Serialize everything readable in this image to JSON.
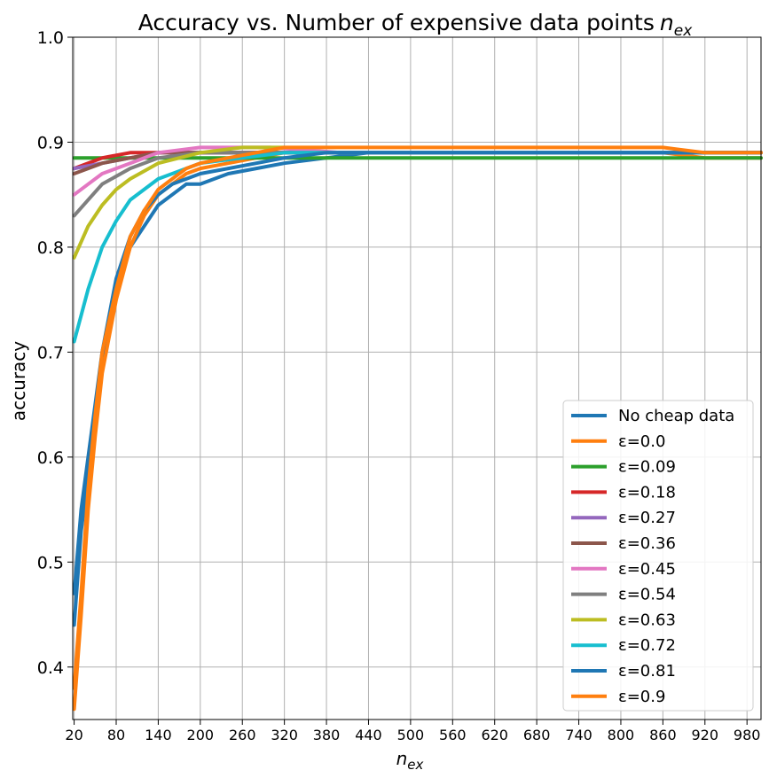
{
  "chart_data": {
    "type": "line",
    "title": "Accuracy vs. Number of expensive data points",
    "title_math": "n",
    "title_math_sub": "ex",
    "xlabel_math": "n",
    "xlabel_math_sub": "ex",
    "ylabel": "accuracy",
    "xlim": [
      18,
      1000
    ],
    "ylim": [
      0.35,
      1.0
    ],
    "xticks": [
      "20",
      "80",
      "140",
      "200",
      "260",
      "320",
      "380",
      "440",
      "500",
      "560",
      "620",
      "680",
      "740",
      "800",
      "860",
      "920",
      "980"
    ],
    "yticks": [
      "0.4",
      "0.5",
      "0.6",
      "0.7",
      "0.8",
      "0.9",
      "1.0"
    ],
    "grid": true,
    "legend_position": "lower-right",
    "series": [
      {
        "name": "No cheap data",
        "color": "#1f77b4",
        "x": [
          20,
          30,
          40,
          50,
          60,
          80,
          100,
          120,
          140,
          160,
          180,
          200,
          240,
          280,
          320,
          380,
          440,
          500,
          560,
          620,
          680,
          740,
          800,
          860,
          920,
          980,
          1000
        ],
        "y": [
          0.44,
          0.53,
          0.58,
          0.63,
          0.69,
          0.76,
          0.8,
          0.82,
          0.84,
          0.85,
          0.86,
          0.86,
          0.87,
          0.875,
          0.88,
          0.885,
          0.89,
          0.89,
          0.89,
          0.89,
          0.89,
          0.89,
          0.89,
          0.89,
          0.89,
          0.89,
          0.89
        ]
      },
      {
        "name": "ε=0.0",
        "color": "#ff7f0e",
        "x": [
          20,
          30,
          40,
          50,
          60,
          80,
          100,
          120,
          140,
          160,
          180,
          200,
          240,
          280,
          320,
          380,
          440,
          500,
          560,
          620,
          680,
          740,
          800,
          860,
          920,
          980,
          1000
        ],
        "y": [
          0.36,
          0.45,
          0.55,
          0.62,
          0.68,
          0.75,
          0.8,
          0.83,
          0.85,
          0.86,
          0.87,
          0.875,
          0.88,
          0.885,
          0.89,
          0.89,
          0.89,
          0.89,
          0.89,
          0.89,
          0.89,
          0.89,
          0.89,
          0.89,
          0.885,
          0.885,
          0.885
        ]
      },
      {
        "name": "ε=0.09",
        "color": "#2ca02c",
        "x": [
          20,
          60,
          100,
          140,
          200,
          300,
          400,
          500,
          600,
          700,
          800,
          900,
          1000
        ],
        "y": [
          0.885,
          0.885,
          0.885,
          0.885,
          0.885,
          0.885,
          0.885,
          0.885,
          0.885,
          0.885,
          0.885,
          0.885,
          0.885
        ]
      },
      {
        "name": "ε=0.18",
        "color": "#d62728",
        "x": [
          20,
          60,
          100,
          140,
          200,
          300,
          400,
          500,
          600,
          700,
          800,
          900,
          1000
        ],
        "y": [
          0.875,
          0.885,
          0.89,
          0.89,
          0.89,
          0.89,
          0.89,
          0.89,
          0.89,
          0.89,
          0.89,
          0.89,
          0.89
        ]
      },
      {
        "name": "ε=0.27",
        "color": "#9467bd",
        "x": [
          20,
          60,
          100,
          140,
          200,
          300,
          400,
          500,
          600,
          700,
          800,
          900,
          1000
        ],
        "y": [
          0.875,
          0.88,
          0.885,
          0.89,
          0.89,
          0.89,
          0.89,
          0.89,
          0.89,
          0.89,
          0.89,
          0.89,
          0.89
        ]
      },
      {
        "name": "ε=0.36",
        "color": "#8c564b",
        "x": [
          20,
          60,
          100,
          140,
          200,
          300,
          400,
          500,
          600,
          700,
          800,
          900,
          1000
        ],
        "y": [
          0.87,
          0.88,
          0.885,
          0.89,
          0.89,
          0.89,
          0.89,
          0.89,
          0.89,
          0.89,
          0.89,
          0.89,
          0.89
        ]
      },
      {
        "name": "ε=0.45",
        "color": "#e377c2",
        "x": [
          20,
          40,
          60,
          100,
          140,
          200,
          300,
          400,
          500,
          600,
          700,
          800,
          900,
          1000
        ],
        "y": [
          0.85,
          0.86,
          0.87,
          0.88,
          0.89,
          0.895,
          0.895,
          0.89,
          0.89,
          0.89,
          0.89,
          0.89,
          0.89,
          0.89
        ]
      },
      {
        "name": "ε=0.54",
        "color": "#7f7f7f",
        "x": [
          20,
          40,
          60,
          100,
          140,
          200,
          300,
          400,
          500,
          600,
          700,
          800,
          900,
          1000
        ],
        "y": [
          0.83,
          0.845,
          0.86,
          0.875,
          0.885,
          0.89,
          0.89,
          0.89,
          0.89,
          0.89,
          0.89,
          0.89,
          0.89,
          0.89
        ]
      },
      {
        "name": "ε=0.63",
        "color": "#bcbd22",
        "x": [
          20,
          40,
          60,
          80,
          100,
          140,
          200,
          260,
          320
        ],
        "y": [
          0.79,
          0.82,
          0.84,
          0.855,
          0.865,
          0.88,
          0.89,
          0.895,
          0.895
        ]
      },
      {
        "name": "ε=0.72",
        "color": "#17becf",
        "x": [
          20,
          40,
          60,
          80,
          100,
          140,
          200,
          260,
          320,
          380,
          440,
          500,
          560,
          620,
          680,
          740,
          800,
          860,
          920,
          980,
          1000
        ],
        "y": [
          0.71,
          0.76,
          0.8,
          0.825,
          0.845,
          0.865,
          0.88,
          0.885,
          0.89,
          0.89,
          0.89,
          0.89,
          0.89,
          0.89,
          0.89,
          0.89,
          0.89,
          0.89,
          0.89,
          0.89,
          0.89
        ]
      },
      {
        "name": "ε=0.81",
        "color": "#1f77b4",
        "x": [
          20,
          30,
          40,
          50,
          60,
          80,
          100,
          120,
          140,
          160,
          180,
          200,
          240,
          280,
          320,
          380,
          440,
          500,
          560,
          620,
          680,
          740,
          800,
          860,
          920,
          980,
          1000
        ],
        "y": [
          0.47,
          0.55,
          0.6,
          0.65,
          0.7,
          0.77,
          0.81,
          0.835,
          0.85,
          0.86,
          0.865,
          0.87,
          0.875,
          0.88,
          0.885,
          0.89,
          0.89,
          0.89,
          0.89,
          0.89,
          0.89,
          0.89,
          0.89,
          0.89,
          0.89,
          0.89,
          0.89
        ]
      },
      {
        "name": "ε=0.9",
        "color": "#ff7f0e",
        "x": [
          20,
          30,
          40,
          50,
          60,
          80,
          100,
          120,
          140,
          160,
          180,
          200,
          240,
          280,
          320,
          380,
          440,
          500,
          560,
          620,
          680,
          740,
          800,
          860,
          920,
          980,
          1000
        ],
        "y": [
          0.38,
          0.47,
          0.57,
          0.64,
          0.7,
          0.76,
          0.81,
          0.835,
          0.855,
          0.865,
          0.875,
          0.88,
          0.885,
          0.89,
          0.895,
          0.895,
          0.895,
          0.895,
          0.895,
          0.895,
          0.895,
          0.895,
          0.895,
          0.895,
          0.89,
          0.89,
          0.89
        ]
      }
    ]
  }
}
